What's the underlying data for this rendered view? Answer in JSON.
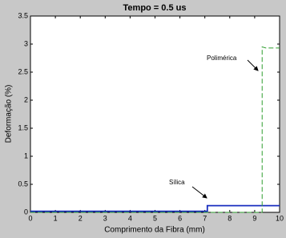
{
  "chart_data": {
    "type": "line",
    "title": "Tempo = 0.5 us",
    "x_label": "Comprimento da Fibra (mm)",
    "y_label": "Deformação (%)",
    "xlim": [
      0,
      10
    ],
    "xticks": [
      0,
      1,
      2,
      3,
      4,
      5,
      6,
      7,
      8,
      9,
      10
    ],
    "ylim": [
      0,
      3.5
    ],
    "yticks": [
      0,
      0.5,
      1,
      1.5,
      2,
      2.5,
      3,
      3.5
    ],
    "series": [
      {
        "name": "Sílica",
        "color": "#1a2fbf",
        "linestyle": "solid",
        "x": [
          0,
          7.1,
          7.1,
          10
        ],
        "values": [
          0.02,
          0.02,
          0.12,
          0.12
        ]
      },
      {
        "name": "Polimérica",
        "color": "#2e9e2e",
        "linestyle": "dashed",
        "x": [
          0,
          9.3,
          9.3,
          9.45,
          10
        ],
        "values": [
          0,
          0,
          2.95,
          2.93,
          2.93
        ]
      }
    ]
  }
}
